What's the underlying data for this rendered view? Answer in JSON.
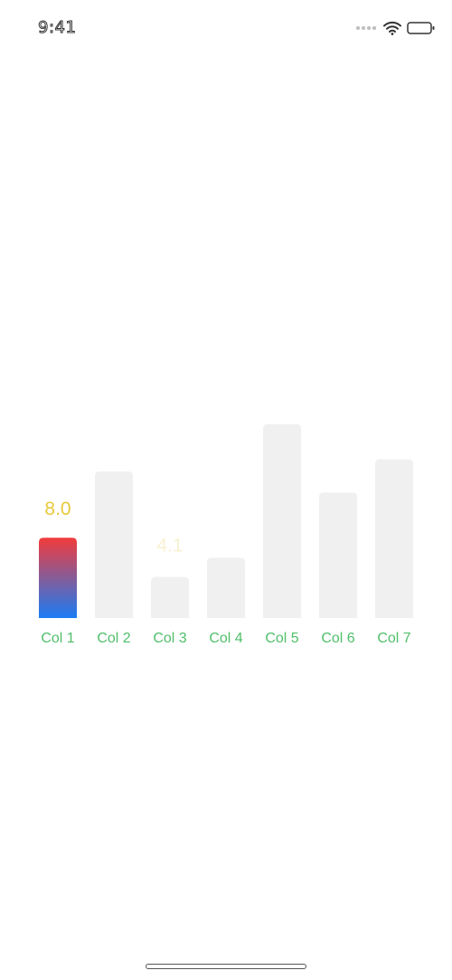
{
  "status_bar": {
    "time": "9:41",
    "icons": [
      "signal-dots-icon",
      "wifi-icon",
      "battery-icon"
    ]
  },
  "chart_data": {
    "type": "bar",
    "categories": [
      "Col 1",
      "Col 2",
      "Col 3",
      "Col 4",
      "Col 5",
      "Col 6",
      "Col 7"
    ],
    "values": [
      8.0,
      14.6,
      4.1,
      6.0,
      19.3,
      12.5,
      15.8
    ],
    "selected_index": 0,
    "selected_label": "8.0",
    "faint_value_label": "4.1",
    "faint_value_index": 2,
    "colors": {
      "bar_background": "#f0f0f0",
      "selected_gradient_top": "#f23b3b",
      "selected_gradient_bottom": "#1a7cf5",
      "category_label": "#4fbf6a",
      "value_label": "#e8c93a",
      "faint_value_label": "#f7f1d2"
    }
  }
}
